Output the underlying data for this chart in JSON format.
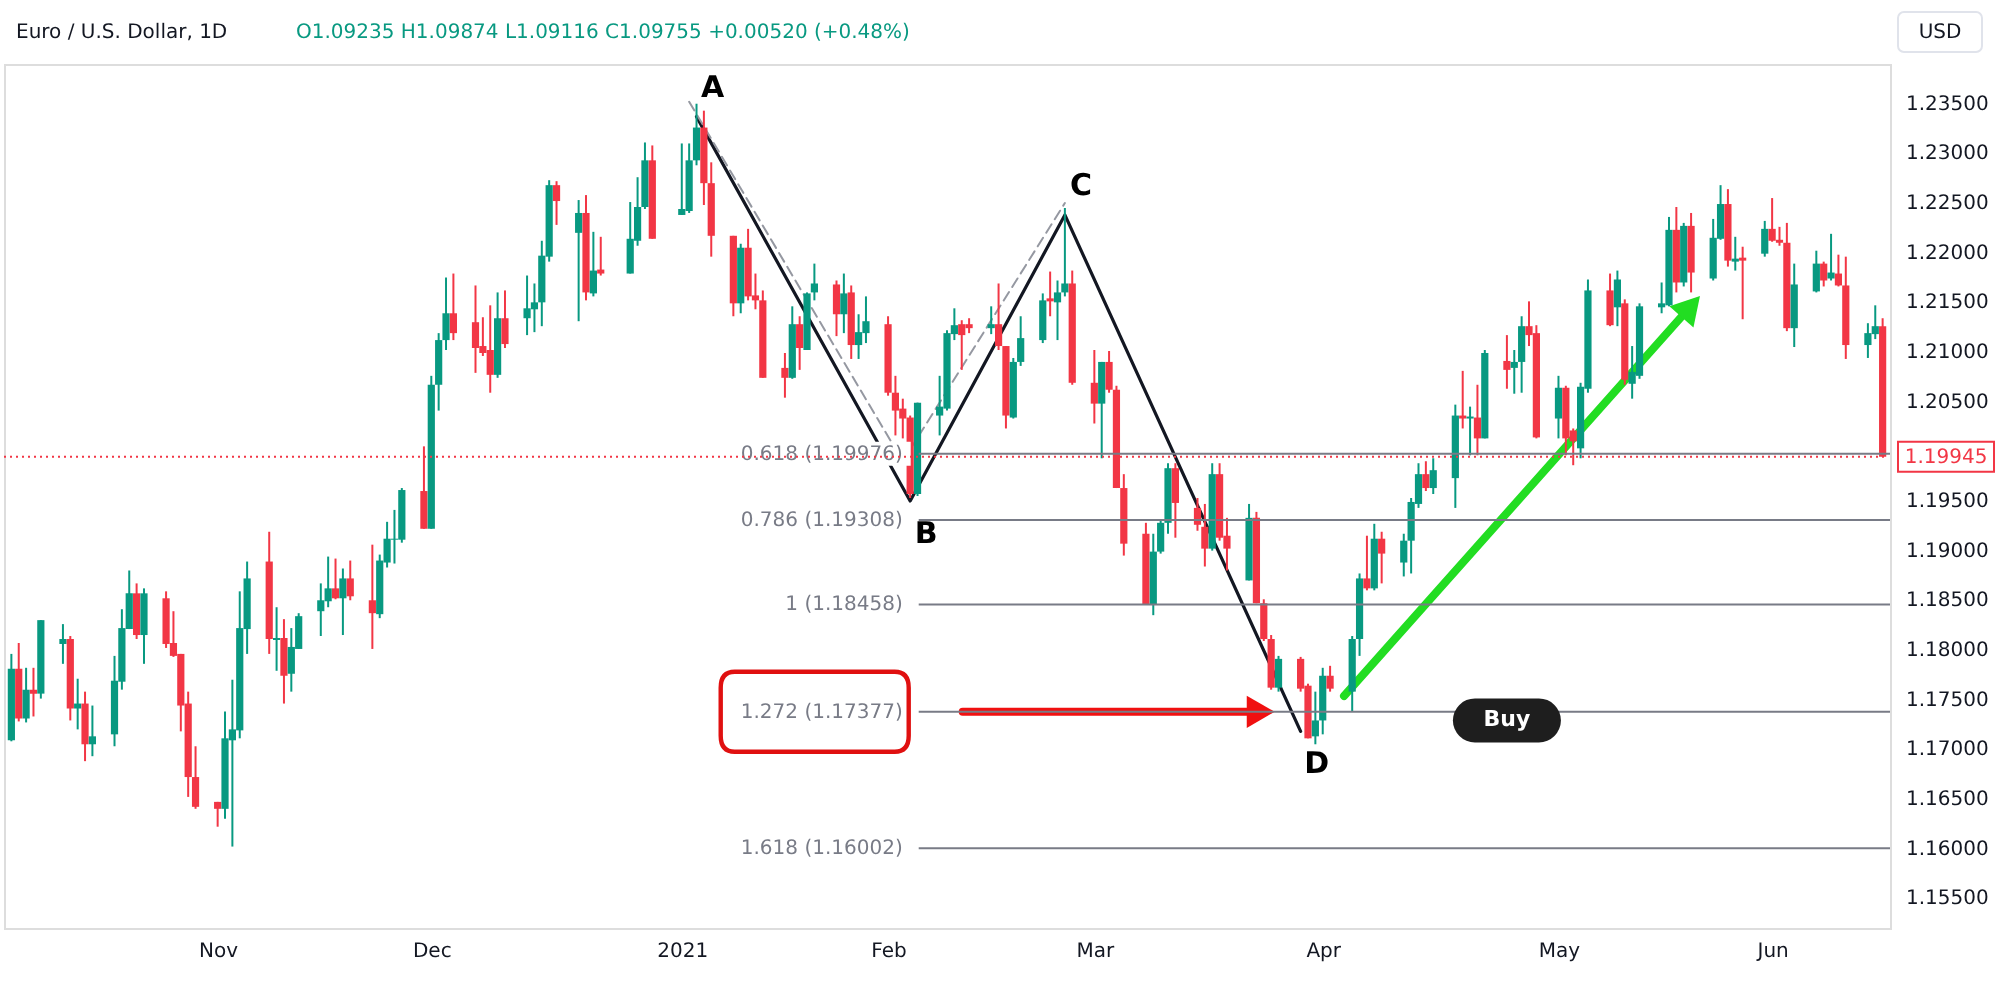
{
  "chart_data": {
    "type": "candlestick",
    "title": "Euro / U.S. Dollar, 1D",
    "subtitle": "O1.09235 H1.09874 L1.09116 C1.09755 +0.00520 (+0.48%)",
    "colors": [
      "#089981",
      "#f23645",
      "#089981",
      "#f23645",
      "#089981",
      "#089981",
      "#f23645",
      "#089981",
      "#f23645",
      "#089981",
      "#089981",
      "#089981",
      "#089981",
      "#f23645",
      "#089981",
      "#f23645",
      "#f23645",
      "#f23645",
      "#f23645",
      "#f23645",
      "#f23645",
      "#089981",
      "#089981",
      "#089981",
      "#089981",
      "#f23645",
      "#089981",
      "#f23645",
      "#089981",
      "#089981",
      "#089981",
      "#089981",
      "#f23645",
      "#089981",
      "#f23645",
      "#f23645",
      "#089981",
      "#089981",
      "#089981",
      "#089981",
      "#f23645",
      "#089981",
      "#089981",
      "#089981",
      "#f23645",
      "#f23645",
      "#f23645",
      "#f23645",
      "#089981",
      "#f23645",
      "#089981",
      "#089981",
      "#089981",
      "#089981",
      "#f23645",
      "#089981",
      "#f23645",
      "#089981",
      "#f23645",
      "#089981",
      "#089981",
      "#089981",
      "#f23645",
      "#089981",
      "#089981",
      "#089981",
      "#f23645",
      "#f23645",
      "#f23645",
      "#089981",
      "#f23645",
      "#f23645",
      "#f23645",
      "#f23645",
      "#089981",
      "#f23645",
      "#089981",
      "#089981",
      "#f23645",
      "#089981",
      "#f23645",
      "#089981",
      "#089981",
      "#f23645",
      "#f23645",
      "#f23645",
      "#f23645",
      "#089981",
      "#089981",
      "#089981",
      "#089981",
      "#f23645",
      "#f23645",
      "#089981",
      "#f23645",
      "#f23645",
      "#089981",
      "#089981",
      "#089981",
      "#f23645",
      "#089981",
      "#089981",
      "#f23645",
      "#f23645",
      "#089981",
      "#f23645",
      "#f23645",
      "#f23645",
      "#f23645",
      "#089981",
      "#089981",
      "#089981",
      "#f23645",
      "#f23645",
      "#f23645",
      "#089981",
      "#f23645",
      "#f23645",
      "#089981",
      "#f23645",
      "#f23645",
      "#f23645",
      "#089981",
      "#f23645",
      "#f23645",
      "#089981",
      "#089981",
      "#f23645",
      "#089981",
      "#089981",
      "#f23645",
      "#089981",
      "#f23645",
      "#089981",
      "#089981",
      "#089981",
      "#f23645",
      "#089981",
      "#089981",
      "#f23645",
      "#089981",
      "#f23645",
      "#089981",
      "#f23645",
      "#089981",
      "#089981",
      "#f23645",
      "#f23645",
      "#089981",
      "#f23645",
      "#f23645",
      "#089981",
      "#089981",
      "#f23645",
      "#089981",
      "#f23645",
      "#089981",
      "#089981",
      "#089981",
      "#089981",
      "#f23645",
      "#089981",
      "#f23645",
      "#089981",
      "#089981",
      "#f23645",
      "#089981",
      "#f23645",
      "#089981",
      "#f23645",
      "#f23645",
      "#f23645",
      "#089981",
      "#089981",
      "#f23645",
      "#089981",
      "#f23645",
      "#f23645",
      "#089981",
      "#089981",
      "#f23645"
    ],
    "x": [
      "2020-10-05",
      "2020-10-06",
      "2020-10-07",
      "2020-10-08",
      "2020-10-09",
      "2020-10-12",
      "2020-10-13",
      "2020-10-14",
      "2020-10-15",
      "2020-10-16",
      "2020-10-19",
      "2020-10-20",
      "2020-10-21",
      "2020-10-22",
      "2020-10-23",
      "2020-10-26",
      "2020-10-27",
      "2020-10-28",
      "2020-10-29",
      "2020-10-30",
      "2020-11-02",
      "2020-11-03",
      "2020-11-04",
      "2020-11-05",
      "2020-11-06",
      "2020-11-09",
      "2020-11-10",
      "2020-11-11",
      "2020-11-12",
      "2020-11-13",
      "2020-11-16",
      "2020-11-17",
      "2020-11-18",
      "2020-11-19",
      "2020-11-20",
      "2020-11-23",
      "2020-11-24",
      "2020-11-25",
      "2020-11-26",
      "2020-11-27",
      "2020-11-30",
      "2020-12-01",
      "2020-12-02",
      "2020-12-03",
      "2020-12-04",
      "2020-12-07",
      "2020-12-08",
      "2020-12-09",
      "2020-12-10",
      "2020-12-11",
      "2020-12-14",
      "2020-12-15",
      "2020-12-16",
      "2020-12-17",
      "2020-12-18",
      "2020-12-21",
      "2020-12-22",
      "2020-12-23",
      "2020-12-24",
      "2020-12-28",
      "2020-12-29",
      "2020-12-30",
      "2020-12-31",
      "2021-01-04",
      "2021-01-05",
      "2021-01-06",
      "2021-01-07",
      "2021-01-08",
      "2021-01-11",
      "2021-01-12",
      "2021-01-13",
      "2021-01-14",
      "2021-01-15",
      "2021-01-18",
      "2021-01-19",
      "2021-01-20",
      "2021-01-21",
      "2021-01-22",
      "2021-01-25",
      "2021-01-26",
      "2021-01-27",
      "2021-01-28",
      "2021-01-29",
      "2021-02-01",
      "2021-02-02",
      "2021-02-03",
      "2021-02-04",
      "2021-02-05",
      "2021-02-08",
      "2021-02-09",
      "2021-02-10",
      "2021-02-11",
      "2021-02-12",
      "2021-02-15",
      "2021-02-16",
      "2021-02-17",
      "2021-02-18",
      "2021-02-19",
      "2021-02-22",
      "2021-02-23",
      "2021-02-24",
      "2021-02-25",
      "2021-02-26",
      "2021-03-01",
      "2021-03-02",
      "2021-03-03",
      "2021-03-04",
      "2021-03-05",
      "2021-03-08",
      "2021-03-09",
      "2021-03-10",
      "2021-03-11",
      "2021-03-12",
      "2021-03-15",
      "2021-03-16",
      "2021-03-17",
      "2021-03-18",
      "2021-03-19",
      "2021-03-22",
      "2021-03-23",
      "2021-03-24",
      "2021-03-25",
      "2021-03-26",
      "2021-03-29",
      "2021-03-30",
      "2021-03-31",
      "2021-04-01",
      "2021-04-02",
      "2021-04-05",
      "2021-04-06",
      "2021-04-07",
      "2021-04-08",
      "2021-04-09",
      "2021-04-12",
      "2021-04-13",
      "2021-04-14",
      "2021-04-15",
      "2021-04-16",
      "2021-04-19",
      "2021-04-20",
      "2021-04-21",
      "2021-04-22",
      "2021-04-23",
      "2021-04-26",
      "2021-04-27",
      "2021-04-28",
      "2021-04-29",
      "2021-04-30",
      "2021-05-03",
      "2021-05-04",
      "2021-05-05",
      "2021-05-06",
      "2021-05-07",
      "2021-05-10",
      "2021-05-11",
      "2021-05-12",
      "2021-05-13",
      "2021-05-14",
      "2021-05-17",
      "2021-05-18",
      "2021-05-19",
      "2021-05-20",
      "2021-05-21",
      "2021-05-24",
      "2021-05-25",
      "2021-05-26",
      "2021-05-27",
      "2021-05-28",
      "2021-05-31",
      "2021-06-01",
      "2021-06-02",
      "2021-06-03",
      "2021-06-04",
      "2021-06-07",
      "2021-06-08",
      "2021-06-09",
      "2021-06-10",
      "2021-06-11",
      "2021-06-14",
      "2021-06-15",
      "2021-06-16"
    ],
    "ohlc": [
      [
        1.1709,
        1.1796,
        1.1708,
        1.1781
      ],
      [
        1.1781,
        1.1807,
        1.1728,
        1.1731
      ],
      [
        1.1731,
        1.1782,
        1.1727,
        1.176
      ],
      [
        1.176,
        1.1782,
        1.1733,
        1.1756
      ],
      [
        1.1756,
        1.183,
        1.1751,
        1.183
      ],
      [
        1.1806,
        1.1826,
        1.1786,
        1.1811
      ],
      [
        1.1811,
        1.1814,
        1.1729,
        1.1741
      ],
      [
        1.1741,
        1.1771,
        1.172,
        1.1746
      ],
      [
        1.1746,
        1.1758,
        1.1688,
        1.1705
      ],
      [
        1.1705,
        1.1744,
        1.1693,
        1.1713
      ],
      [
        1.1715,
        1.1794,
        1.1703,
        1.1769
      ],
      [
        1.1768,
        1.1841,
        1.176,
        1.1822
      ],
      [
        1.1821,
        1.188,
        1.1821,
        1.1857
      ],
      [
        1.1857,
        1.1867,
        1.1811,
        1.1815
      ],
      [
        1.1815,
        1.1862,
        1.1786,
        1.1857
      ],
      [
        1.1852,
        1.1859,
        1.1802,
        1.1806
      ],
      [
        1.1807,
        1.1839,
        1.1793,
        1.1794
      ],
      [
        1.1796,
        1.1796,
        1.1718,
        1.1744
      ],
      [
        1.1746,
        1.1758,
        1.1652,
        1.1672
      ],
      [
        1.1672,
        1.1703,
        1.164,
        1.1642
      ],
      [
        1.1647,
        1.1647,
        1.1622,
        1.164
      ],
      [
        1.164,
        1.1738,
        1.163,
        1.1711
      ],
      [
        1.1709,
        1.177,
        1.1602,
        1.172
      ],
      [
        1.1719,
        1.1859,
        1.1711,
        1.1822
      ],
      [
        1.1821,
        1.1889,
        1.1796,
        1.1872
      ],
      [
        1.1889,
        1.1919,
        1.1796,
        1.1811
      ],
      [
        1.181,
        1.1843,
        1.1779,
        1.1812
      ],
      [
        1.1812,
        1.1831,
        1.1746,
        1.1774
      ],
      [
        1.1776,
        1.1822,
        1.1758,
        1.1803
      ],
      [
        1.1801,
        1.1837,
        1.1801,
        1.1834
      ],
      [
        1.1839,
        1.1867,
        1.1814,
        1.185
      ],
      [
        1.1849,
        1.1894,
        1.1843,
        1.1862
      ],
      [
        1.1862,
        1.1892,
        1.1851,
        1.1852
      ],
      [
        1.1852,
        1.1882,
        1.1815,
        1.1872
      ],
      [
        1.1872,
        1.189,
        1.185,
        1.1854
      ],
      [
        1.185,
        1.1906,
        1.1801,
        1.1837
      ],
      [
        1.1836,
        1.1896,
        1.1832,
        1.189
      ],
      [
        1.1888,
        1.1929,
        1.1883,
        1.1912
      ],
      [
        1.1911,
        1.1941,
        1.1887,
        1.1912
      ],
      [
        1.1911,
        1.1963,
        1.1908,
        1.1961
      ],
      [
        1.196,
        1.2005,
        1.1922,
        1.1922
      ],
      [
        1.1922,
        1.2076,
        1.1922,
        1.2067
      ],
      [
        1.2067,
        1.2119,
        1.2041,
        1.2112
      ],
      [
        1.2112,
        1.2175,
        1.2102,
        1.2139
      ],
      [
        1.2139,
        1.2179,
        1.2112,
        1.2119
      ],
      [
        1.213,
        1.2167,
        1.2079,
        1.2104
      ],
      [
        1.2106,
        1.2135,
        1.2096,
        1.2099
      ],
      [
        1.2102,
        1.2147,
        1.2059,
        1.2077
      ],
      [
        1.2077,
        1.216,
        1.2074,
        1.2134
      ],
      [
        1.2134,
        1.2162,
        1.2104,
        1.2108
      ],
      [
        1.2134,
        1.2177,
        1.2117,
        1.2144
      ],
      [
        1.2143,
        1.2169,
        1.212,
        1.215
      ],
      [
        1.215,
        1.2212,
        1.2126,
        1.2197
      ],
      [
        1.2196,
        1.2273,
        1.2191,
        1.2268
      ],
      [
        1.2268,
        1.2272,
        1.2228,
        1.2252
      ],
      [
        1.222,
        1.2253,
        1.2131,
        1.224
      ],
      [
        1.224,
        1.2258,
        1.2152,
        1.216
      ],
      [
        1.2159,
        1.2221,
        1.2156,
        1.2182
      ],
      [
        1.2183,
        1.2216,
        1.2177,
        1.2179
      ],
      [
        1.2179,
        1.2251,
        1.2179,
        1.2214
      ],
      [
        1.2212,
        1.2276,
        1.2207,
        1.2246
      ],
      [
        1.2246,
        1.2311,
        1.2244,
        1.2293
      ],
      [
        1.2293,
        1.2308,
        1.2214,
        1.2214
      ],
      [
        1.2238,
        1.231,
        1.2238,
        1.2244
      ],
      [
        1.2242,
        1.231,
        1.224,
        1.2293
      ],
      [
        1.2293,
        1.235,
        1.2288,
        1.2326
      ],
      [
        1.2326,
        1.2343,
        1.2248,
        1.227
      ],
      [
        1.227,
        1.2291,
        1.2196,
        1.2217
      ],
      [
        1.2217,
        1.2217,
        1.2136,
        1.2149
      ],
      [
        1.2149,
        1.2209,
        1.2139,
        1.2205
      ],
      [
        1.2205,
        1.2224,
        1.2152,
        1.2156
      ],
      [
        1.2157,
        1.2179,
        1.2143,
        1.2152
      ],
      [
        1.2152,
        1.2162,
        1.2074,
        1.2074
      ],
      [
        1.2084,
        1.2099,
        1.2054,
        1.2074
      ],
      [
        1.2074,
        1.2146,
        1.2073,
        1.2128
      ],
      [
        1.2128,
        1.2136,
        1.2082,
        1.2104
      ],
      [
        1.2102,
        1.216,
        1.2102,
        1.2159
      ],
      [
        1.216,
        1.2189,
        1.2152,
        1.2169
      ],
      [
        1.2168,
        1.2172,
        1.2116,
        1.2138
      ],
      [
        1.2138,
        1.2179,
        1.2119,
        1.2159
      ],
      [
        1.216,
        1.2167,
        1.2093,
        1.2107
      ],
      [
        1.2107,
        1.2138,
        1.2093,
        1.212
      ],
      [
        1.2119,
        1.2156,
        1.2109,
        1.2131
      ],
      [
        1.2128,
        1.2136,
        1.2056,
        1.2059
      ],
      [
        1.2059,
        1.2076,
        1.2016,
        1.2041
      ],
      [
        1.2043,
        1.2053,
        1.2013,
        1.2033
      ],
      [
        1.2034,
        1.2036,
        1.1953,
        1.1957
      ],
      [
        1.1957,
        1.2049,
        1.1955,
        1.2049
      ],
      [
        1.2036,
        1.2076,
        1.2016,
        1.2045
      ],
      [
        1.2043,
        1.2122,
        1.2041,
        1.2119
      ],
      [
        1.2118,
        1.2144,
        1.2112,
        1.2127
      ],
      [
        1.2128,
        1.2132,
        1.2082,
        1.2117
      ],
      [
        1.2128,
        1.2134,
        1.2119,
        1.2124
      ],
      [
        1.2124,
        1.2146,
        1.2118,
        1.2128
      ],
      [
        1.2128,
        1.2169,
        1.2102,
        1.2106
      ],
      [
        1.2106,
        1.2106,
        1.2023,
        1.2036
      ],
      [
        1.2034,
        1.2094,
        1.2033,
        1.209
      ],
      [
        1.209,
        1.2136,
        1.2086,
        1.2114
      ],
      [
        1.2112,
        1.2159,
        1.2109,
        1.2152
      ],
      [
        1.2154,
        1.2181,
        1.2136,
        1.2151
      ],
      [
        1.215,
        1.2172,
        1.2112,
        1.216
      ],
      [
        1.216,
        1.2245,
        1.2156,
        1.2169
      ],
      [
        1.2169,
        1.2182,
        1.2067,
        1.2069
      ],
      [
        1.2069,
        1.2102,
        1.2028,
        1.2048
      ],
      [
        1.2048,
        1.209,
        1.1993,
        1.209
      ],
      [
        1.209,
        1.2101,
        1.2059,
        1.2062
      ],
      [
        1.2062,
        1.2066,
        1.1963,
        1.1963
      ],
      [
        1.1963,
        1.1977,
        1.1895,
        1.1907
      ],
      [
        1.1917,
        1.1928,
        1.1846,
        1.1846
      ],
      [
        1.1846,
        1.1917,
        1.1835,
        1.1899
      ],
      [
        1.1899,
        1.193,
        1.1897,
        1.1928
      ],
      [
        1.1928,
        1.1988,
        1.1917,
        1.1983
      ],
      [
        1.1983,
        1.1988,
        1.1913,
        1.1948
      ],
      [
        1.1943,
        1.1953,
        1.192,
        1.1926
      ],
      [
        1.1924,
        1.1947,
        1.1884,
        1.1902
      ],
      [
        1.1902,
        1.1988,
        1.19,
        1.1977
      ],
      [
        1.1977,
        1.1988,
        1.191,
        1.1913
      ],
      [
        1.1915,
        1.1933,
        1.188,
        1.1902
      ],
      [
        1.187,
        1.1947,
        1.187,
        1.1933
      ],
      [
        1.1933,
        1.1939,
        1.1847,
        1.1847
      ],
      [
        1.1847,
        1.1851,
        1.1809,
        1.1811
      ],
      [
        1.1811,
        1.1815,
        1.176,
        1.1762
      ],
      [
        1.1762,
        1.1794,
        1.1758,
        1.1791
      ],
      [
        1.1791,
        1.1793,
        1.1758,
        1.1761
      ],
      [
        1.1764,
        1.1766,
        1.1711,
        1.1711
      ],
      [
        1.1713,
        1.1758,
        1.1705,
        1.1729
      ],
      [
        1.1729,
        1.1782,
        1.1715,
        1.1774
      ],
      [
        1.1774,
        1.1784,
        1.1758,
        1.1761
      ],
      [
        1.1758,
        1.1814,
        1.1738,
        1.1811
      ],
      [
        1.1811,
        1.1877,
        1.1794,
        1.1872
      ],
      [
        1.1872,
        1.1915,
        1.186,
        1.1862
      ],
      [
        1.1862,
        1.1927,
        1.186,
        1.1912
      ],
      [
        1.1912,
        1.1919,
        1.1867,
        1.1897
      ],
      [
        1.1888,
        1.1917,
        1.1874,
        1.191
      ],
      [
        1.191,
        1.1953,
        1.1877,
        1.1949
      ],
      [
        1.1947,
        1.1988,
        1.1943,
        1.1977
      ],
      [
        1.1977,
        1.199,
        1.196,
        1.1963
      ],
      [
        1.1963,
        1.1993,
        1.1957,
        1.1981
      ],
      [
        1.1973,
        1.2047,
        1.1943,
        1.2036
      ],
      [
        1.2036,
        1.2081,
        1.2023,
        1.2033
      ],
      [
        1.2033,
        1.2045,
        1.1996,
        1.2035
      ],
      [
        1.2034,
        1.2067,
        1.1996,
        1.2013
      ],
      [
        1.2013,
        1.2102,
        1.2013,
        1.2099
      ],
      [
        1.2091,
        1.2117,
        1.2063,
        1.2082
      ],
      [
        1.2084,
        1.2102,
        1.2058,
        1.209
      ],
      [
        1.209,
        1.2136,
        1.2059,
        1.2126
      ],
      [
        1.2126,
        1.2151,
        1.2106,
        1.2117
      ],
      [
        1.2119,
        1.2127,
        1.2013,
        1.2014
      ],
      [
        1.2033,
        1.2076,
        1.2013,
        1.2064
      ],
      [
        1.2064,
        1.2066,
        1.1996,
        1.2013
      ],
      [
        1.2021,
        1.2023,
        1.1986,
        1.201
      ],
      [
        1.2003,
        1.2069,
        1.1993,
        1.2065
      ],
      [
        1.2063,
        1.2173,
        1.2059,
        1.2162
      ],
      [
        1.2162,
        1.2179,
        1.2126,
        1.2127
      ],
      [
        1.2145,
        1.2182,
        1.2126,
        1.2173
      ],
      [
        1.2149,
        1.2153,
        1.2067,
        1.2072
      ],
      [
        1.2068,
        1.2106,
        1.2053,
        1.208
      ],
      [
        1.2076,
        1.2149,
        1.2073,
        1.2146
      ],
      [
        1.2145,
        1.217,
        1.2139,
        1.2149
      ],
      [
        1.2147,
        1.2236,
        1.2146,
        1.2223
      ],
      [
        1.2223,
        1.2246,
        1.216,
        1.217
      ],
      [
        1.217,
        1.223,
        1.2166,
        1.2227
      ],
      [
        1.2227,
        1.224,
        1.216,
        1.218
      ],
      [
        1.2174,
        1.2234,
        1.2172,
        1.2215
      ],
      [
        1.2214,
        1.2268,
        1.2213,
        1.2249
      ],
      [
        1.2249,
        1.2264,
        1.2186,
        1.2192
      ],
      [
        1.2191,
        1.2216,
        1.2182,
        1.2194
      ],
      [
        1.2195,
        1.2206,
        1.2133,
        1.2192
      ],
      [
        1.2199,
        1.2232,
        1.2196,
        1.2224
      ],
      [
        1.2224,
        1.2255,
        1.2211,
        1.2212
      ],
      [
        1.2213,
        1.2226,
        1.2207,
        1.221
      ],
      [
        1.221,
        1.223,
        1.2121,
        1.2124
      ],
      [
        1.2124,
        1.2189,
        1.2105,
        1.2168
      ],
      [
        1.2161,
        1.2202,
        1.216,
        1.2189
      ],
      [
        1.2189,
        1.2191,
        1.2166,
        1.2172
      ],
      [
        1.2174,
        1.2219,
        1.2172,
        1.218
      ],
      [
        1.2179,
        1.2198,
        1.2166,
        1.2167
      ],
      [
        1.2167,
        1.2196,
        1.2093,
        1.2107
      ],
      [
        1.2107,
        1.2129,
        1.2094,
        1.2119
      ],
      [
        1.2118,
        1.2147,
        1.2113,
        1.2126
      ],
      [
        1.2126,
        1.2134,
        1.19945,
        1.19945
      ]
    ],
    "series": [
      {
        "type": "line",
        "color": "#131722",
        "x": [
          "2021-01-06",
          "2021-02-04",
          "2021-02-25",
          "2021-03-29"
        ],
        "values": [
          1.2337,
          1.195,
          1.2238,
          1.1718
        ]
      },
      {
        "type": "line",
        "color": "#9598a1",
        "line_style": "dashed",
        "x": [
          "2021-01-05",
          "2021-02-03",
          "2021-02-25"
        ],
        "values": [
          1.2352,
          1.199,
          1.225
        ]
      }
    ],
    "ref_lines": [
      {
        "axis": "y",
        "value": 1.19976,
        "label": "0.618 (1.19976)",
        "color": "#787b86",
        "line_style": "solid"
      },
      {
        "axis": "y",
        "value": 1.19308,
        "label": "0.786 (1.19308)",
        "color": "#787b86",
        "line_style": "solid"
      },
      {
        "axis": "y",
        "value": 1.18458,
        "label": "1 (1.18458)",
        "color": "#787b86",
        "line_style": "solid"
      },
      {
        "axis": "y",
        "value": 1.17377,
        "label": "1.272 (1.17377)",
        "color": "#787b86",
        "line_style": "solid"
      },
      {
        "axis": "y",
        "value": 1.16002,
        "label": "1.618 (1.16002)",
        "color": "#787b86",
        "line_style": "solid"
      },
      {
        "axis": "y",
        "value": 1.19945,
        "label": "1.19945",
        "color": "#f23645",
        "line_style": "dotted"
      }
    ],
    "annotations": [
      "USD",
      {
        "text": "A",
        "x": "2021-01-06",
        "y": 1.2337
      },
      {
        "text": "B",
        "x": "2021-02-04",
        "y": 1.195
      },
      {
        "text": "C",
        "x": "2021-02-25",
        "y": 1.2238
      },
      {
        "text": "D",
        "x": "2021-03-29",
        "y": 1.1718
      },
      {
        "text": "Buy",
        "x": "2021-04-26",
        "y": 1.1729
      }
    ],
    "xlim": [
      "2020-10-04",
      "2021-06-17"
    ],
    "ylim": [
      1.152,
      1.239
    ],
    "xticks": [
      {
        "value": "2020-11-02",
        "label": "Nov"
      },
      {
        "value": "2020-12-01",
        "label": "Dec"
      },
      {
        "value": "2021-01-04",
        "label": "2021"
      },
      {
        "value": "2021-02-01",
        "label": "Feb"
      },
      {
        "value": "2021-03-01",
        "label": "Mar"
      },
      {
        "value": "2021-04-01",
        "label": "Apr"
      },
      {
        "value": "2021-05-03",
        "label": "May"
      },
      {
        "value": "2021-06-01",
        "label": "Jun"
      }
    ],
    "yticks": [
      {
        "value": 1.155,
        "label": "1.15500"
      },
      {
        "value": 1.16,
        "label": "1.16000"
      },
      {
        "value": 1.165,
        "label": "1.16500"
      },
      {
        "value": 1.17,
        "label": "1.17000"
      },
      {
        "value": 1.175,
        "label": "1.17500"
      },
      {
        "value": 1.18,
        "label": "1.18000"
      },
      {
        "value": 1.185,
        "label": "1.18500"
      },
      {
        "value": 1.19,
        "label": "1.19000"
      },
      {
        "value": 1.195,
        "label": "1.19500"
      },
      {
        "value": 1.205,
        "label": "1.20500"
      },
      {
        "value": 1.21,
        "label": "1.21000"
      },
      {
        "value": 1.215,
        "label": "1.21500"
      },
      {
        "value": 1.22,
        "label": "1.22000"
      },
      {
        "value": 1.225,
        "label": "1.22500"
      },
      {
        "value": 1.23,
        "label": "1.23000"
      },
      {
        "value": 1.235,
        "label": "1.23500"
      }
    ],
    "grid": false
  }
}
